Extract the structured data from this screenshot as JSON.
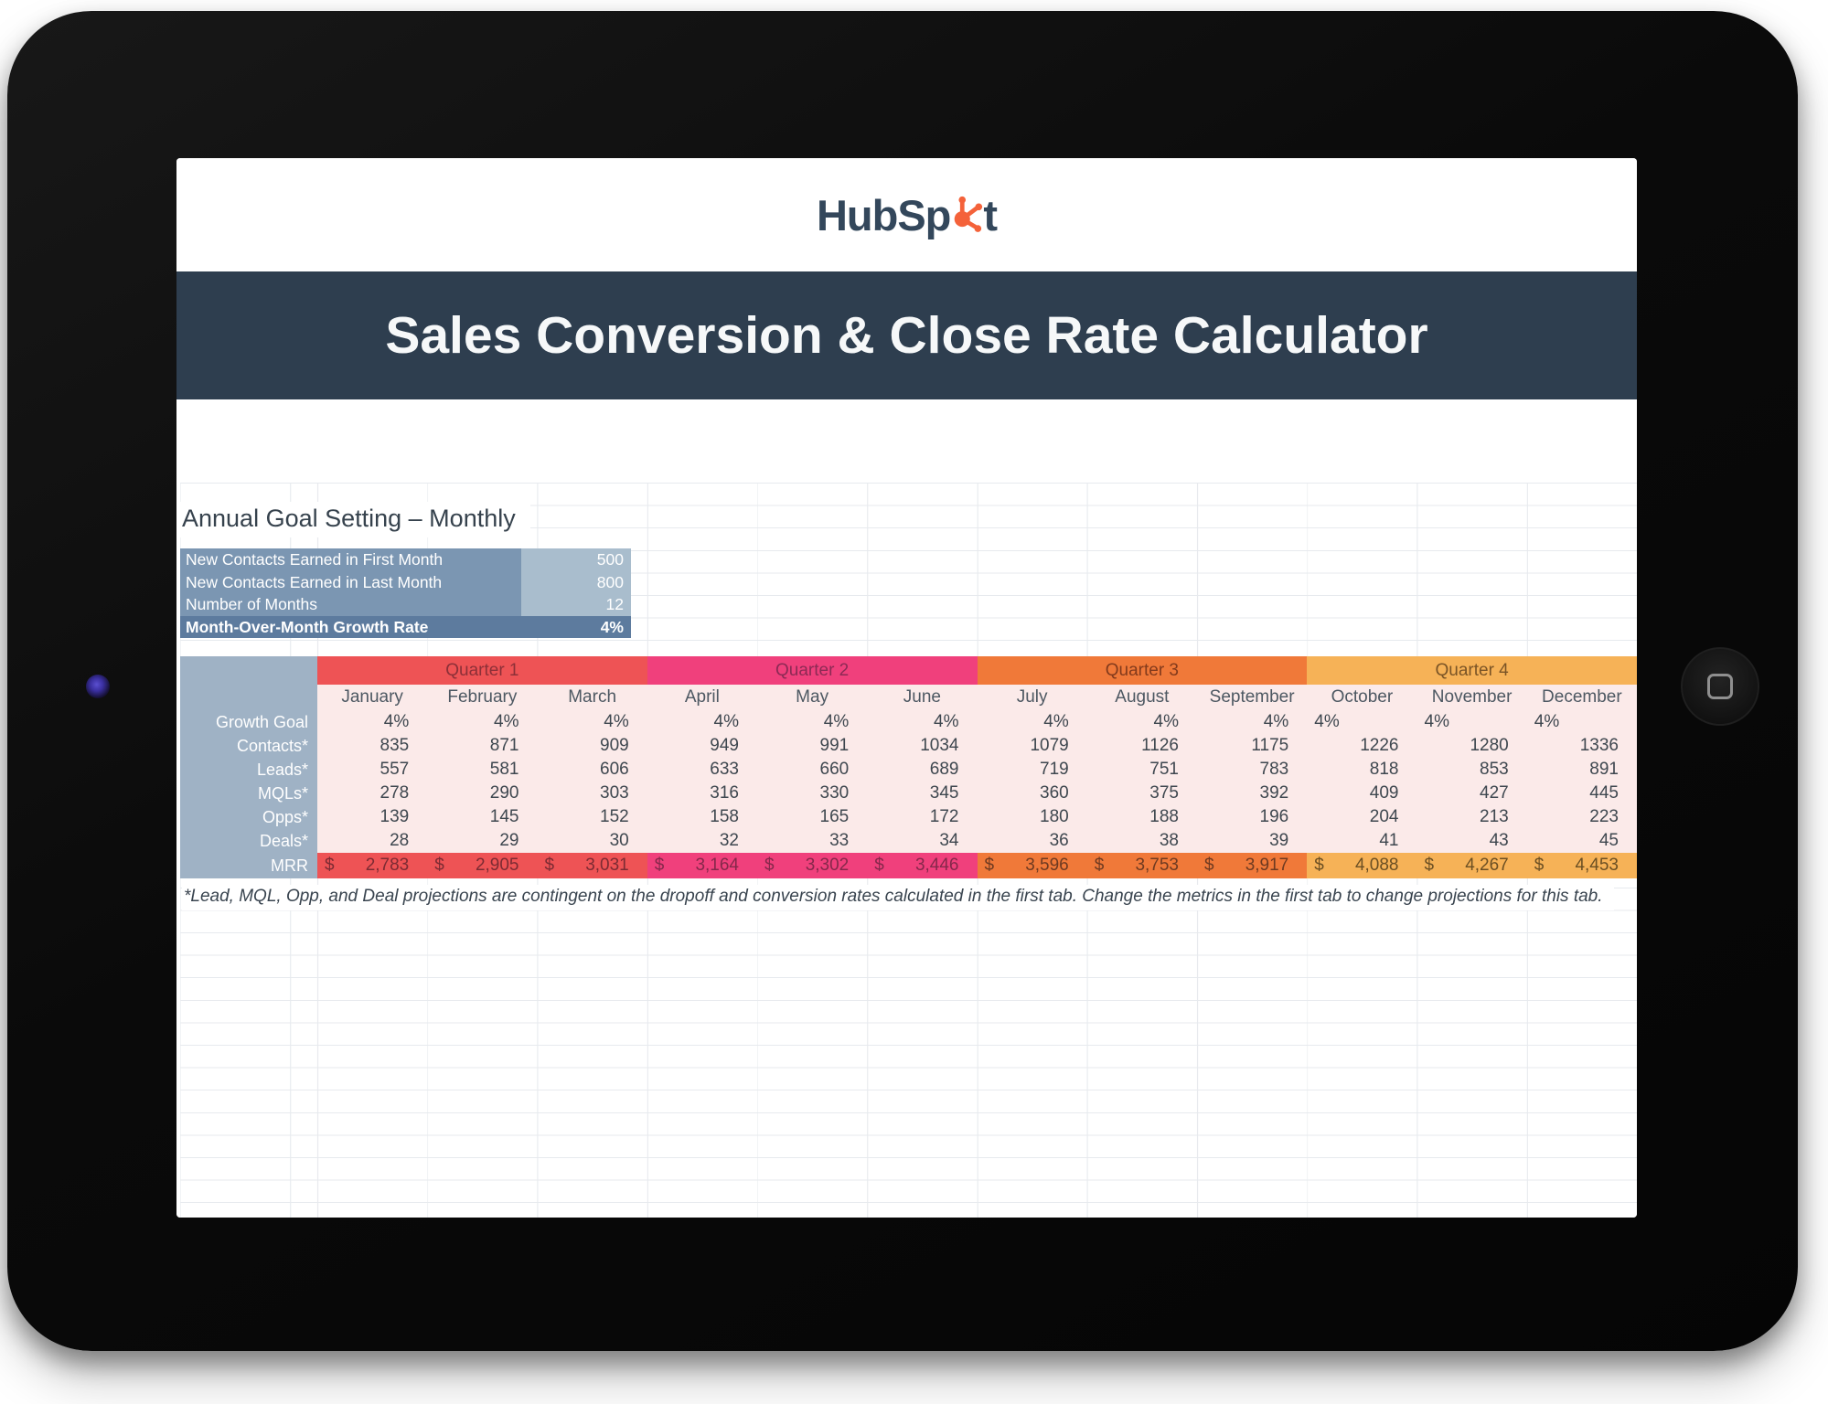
{
  "brand": {
    "name_prefix": "HubSp",
    "name_suffix": "t",
    "sprocket_icon": "sprocket-icon",
    "navy": "#33475b",
    "orange": "#f4623a"
  },
  "header": {
    "title": "Sales Conversion & Close Rate Calculator",
    "bg": "#2e3e4f"
  },
  "device": {
    "camera_icon": "camera-icon",
    "home_button_icon": "home-button-icon"
  },
  "sheet": {
    "section_title": "Annual Goal Setting – Monthly",
    "settings": {
      "label_bg": "#7b96b2",
      "value_bg": "#a9bdcd",
      "highlight_bg": "#5d7b9e",
      "rows": [
        {
          "label": "New Contacts Earned in First Month",
          "value": "500"
        },
        {
          "label": "New Contacts Earned in Last Month",
          "value": "800"
        },
        {
          "label": "Number of Months",
          "value": "12"
        }
      ],
      "highlight": {
        "label": "Month-Over-Month Growth Rate",
        "value": "4%"
      }
    },
    "table": {
      "label_col_bg": "#9fb2c5",
      "body_bg": "#fbeae9",
      "quarters": [
        {
          "label": "Quarter 1",
          "color": "#ee5355",
          "text": "#8c3038",
          "mrr_text": "#7c2b33"
        },
        {
          "label": "Quarter 2",
          "color": "#f0407c",
          "text": "#8c2a55",
          "mrr_text": "#85284b"
        },
        {
          "label": "Quarter 3",
          "color": "#f07939",
          "text": "#823a1c",
          "mrr_text": "#6e3a21"
        },
        {
          "label": "Quarter 4",
          "color": "#f6b257",
          "text": "#7a5426",
          "mrr_text": "#6b4f23"
        }
      ],
      "months": [
        "January",
        "February",
        "March",
        "April",
        "May",
        "June",
        "July",
        "August",
        "September",
        "October",
        "November",
        "December"
      ],
      "rows": [
        {
          "label": "Growth Goal",
          "values": [
            "4%",
            "4%",
            "4%",
            "4%",
            "4%",
            "4%",
            "4%",
            "4%",
            "4%",
            "4%",
            "4%",
            "4%"
          ]
        },
        {
          "label": "Contacts*",
          "values": [
            "835",
            "871",
            "909",
            "949",
            "991",
            "1034",
            "1079",
            "1126",
            "1175",
            "1226",
            "1280",
            "1336"
          ]
        },
        {
          "label": "Leads*",
          "values": [
            "557",
            "581",
            "606",
            "633",
            "660",
            "689",
            "719",
            "751",
            "783",
            "818",
            "853",
            "891"
          ]
        },
        {
          "label": "MQLs*",
          "values": [
            "278",
            "290",
            "303",
            "316",
            "330",
            "345",
            "360",
            "375",
            "392",
            "409",
            "427",
            "445"
          ]
        },
        {
          "label": "Opps*",
          "values": [
            "139",
            "145",
            "152",
            "158",
            "165",
            "172",
            "180",
            "188",
            "196",
            "204",
            "213",
            "223"
          ]
        },
        {
          "label": "Deals*",
          "values": [
            "28",
            "29",
            "30",
            "32",
            "33",
            "34",
            "36",
            "38",
            "39",
            "41",
            "43",
            "45"
          ]
        }
      ],
      "mrr": {
        "label": "MRR",
        "currency": "$",
        "values": [
          "2,783",
          "2,905",
          "3,031",
          "3,164",
          "3,302",
          "3,446",
          "3,596",
          "3,753",
          "3,917",
          "4,088",
          "4,267",
          "4,453"
        ]
      }
    },
    "footnote": "*Lead, MQL, Opp, and Deal projections are contingent on the dropoff and conversion rates calculated in the first tab. Change the metrics in the first tab to change projections for this tab."
  }
}
